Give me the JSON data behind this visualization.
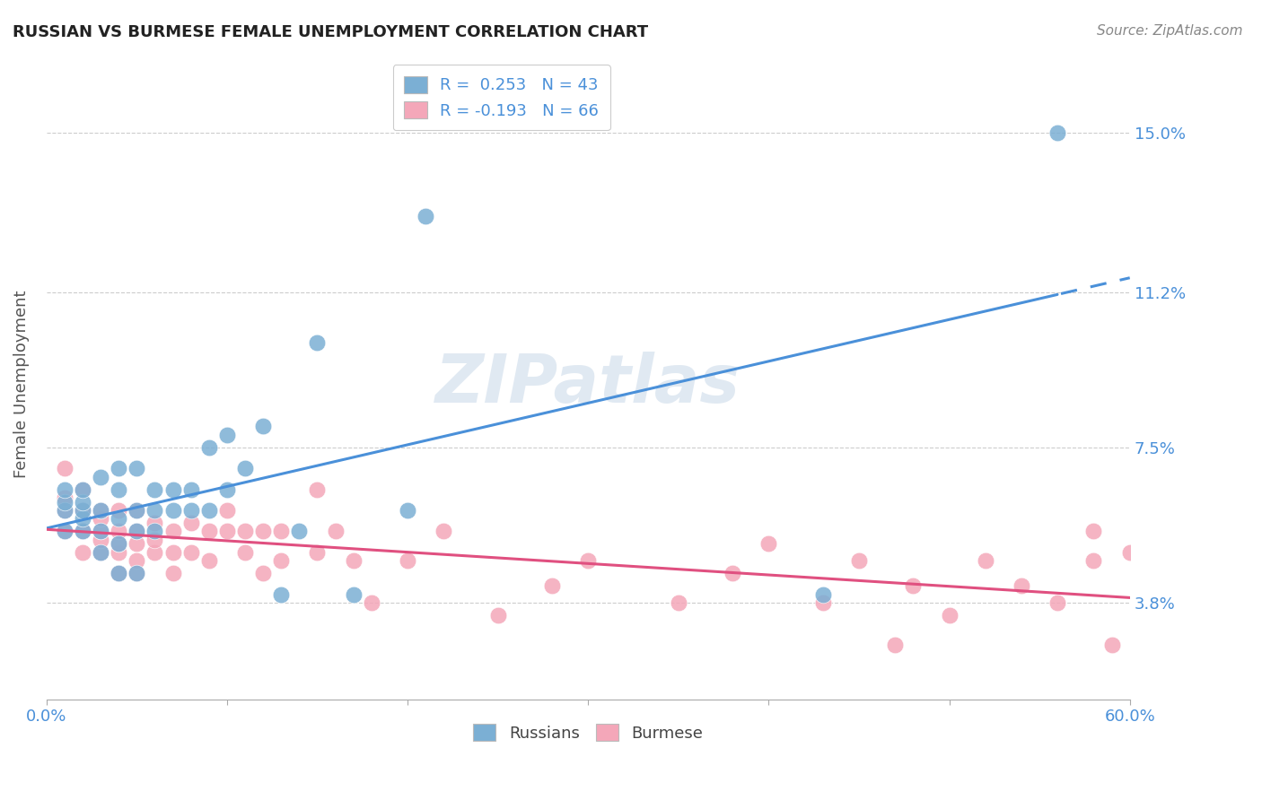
{
  "title": "RUSSIAN VS BURMESE FEMALE UNEMPLOYMENT CORRELATION CHART",
  "source": "Source: ZipAtlas.com",
  "ylabel": "Female Unemployment",
  "yticks_labels": [
    "15.0%",
    "11.2%",
    "7.5%",
    "3.8%"
  ],
  "yticks_values": [
    0.15,
    0.112,
    0.075,
    0.038
  ],
  "xlim": [
    0.0,
    0.6
  ],
  "ylim": [
    0.015,
    0.165
  ],
  "legend_russian": "R =  0.253   N = 43",
  "legend_burmese": "R = -0.193   N = 66",
  "russian_color": "#7bafd4",
  "burmese_color": "#f4a7b9",
  "russian_line_color": "#4a90d9",
  "burmese_line_color": "#e05080",
  "russians_scatter_x": [
    0.01,
    0.01,
    0.01,
    0.01,
    0.02,
    0.02,
    0.02,
    0.02,
    0.02,
    0.03,
    0.03,
    0.03,
    0.03,
    0.04,
    0.04,
    0.04,
    0.04,
    0.04,
    0.05,
    0.05,
    0.05,
    0.05,
    0.06,
    0.06,
    0.06,
    0.07,
    0.07,
    0.08,
    0.08,
    0.09,
    0.09,
    0.1,
    0.1,
    0.11,
    0.12,
    0.13,
    0.14,
    0.15,
    0.17,
    0.2,
    0.21,
    0.43,
    0.56
  ],
  "russians_scatter_y": [
    0.055,
    0.06,
    0.062,
    0.065,
    0.055,
    0.058,
    0.06,
    0.062,
    0.065,
    0.05,
    0.055,
    0.06,
    0.068,
    0.045,
    0.052,
    0.058,
    0.065,
    0.07,
    0.045,
    0.055,
    0.06,
    0.07,
    0.055,
    0.06,
    0.065,
    0.06,
    0.065,
    0.06,
    0.065,
    0.06,
    0.075,
    0.065,
    0.078,
    0.07,
    0.08,
    0.04,
    0.055,
    0.1,
    0.04,
    0.06,
    0.13,
    0.04,
    0.15
  ],
  "burmese_scatter_x": [
    0.01,
    0.01,
    0.01,
    0.01,
    0.02,
    0.02,
    0.02,
    0.02,
    0.03,
    0.03,
    0.03,
    0.03,
    0.03,
    0.04,
    0.04,
    0.04,
    0.04,
    0.04,
    0.05,
    0.05,
    0.05,
    0.05,
    0.05,
    0.06,
    0.06,
    0.06,
    0.07,
    0.07,
    0.07,
    0.08,
    0.08,
    0.09,
    0.09,
    0.1,
    0.1,
    0.11,
    0.11,
    0.12,
    0.12,
    0.13,
    0.13,
    0.15,
    0.15,
    0.16,
    0.17,
    0.18,
    0.2,
    0.22,
    0.25,
    0.28,
    0.3,
    0.35,
    0.38,
    0.4,
    0.43,
    0.45,
    0.47,
    0.48,
    0.5,
    0.52,
    0.54,
    0.56,
    0.58,
    0.58,
    0.59,
    0.6
  ],
  "burmese_scatter_y": [
    0.055,
    0.06,
    0.063,
    0.07,
    0.05,
    0.055,
    0.06,
    0.065,
    0.05,
    0.053,
    0.055,
    0.058,
    0.06,
    0.045,
    0.05,
    0.052,
    0.055,
    0.06,
    0.045,
    0.048,
    0.052,
    0.055,
    0.06,
    0.05,
    0.053,
    0.057,
    0.045,
    0.05,
    0.055,
    0.05,
    0.057,
    0.048,
    0.055,
    0.055,
    0.06,
    0.05,
    0.055,
    0.045,
    0.055,
    0.048,
    0.055,
    0.05,
    0.065,
    0.055,
    0.048,
    0.038,
    0.048,
    0.055,
    0.035,
    0.042,
    0.048,
    0.038,
    0.045,
    0.052,
    0.038,
    0.048,
    0.028,
    0.042,
    0.035,
    0.048,
    0.042,
    0.038,
    0.048,
    0.055,
    0.028,
    0.05
  ]
}
